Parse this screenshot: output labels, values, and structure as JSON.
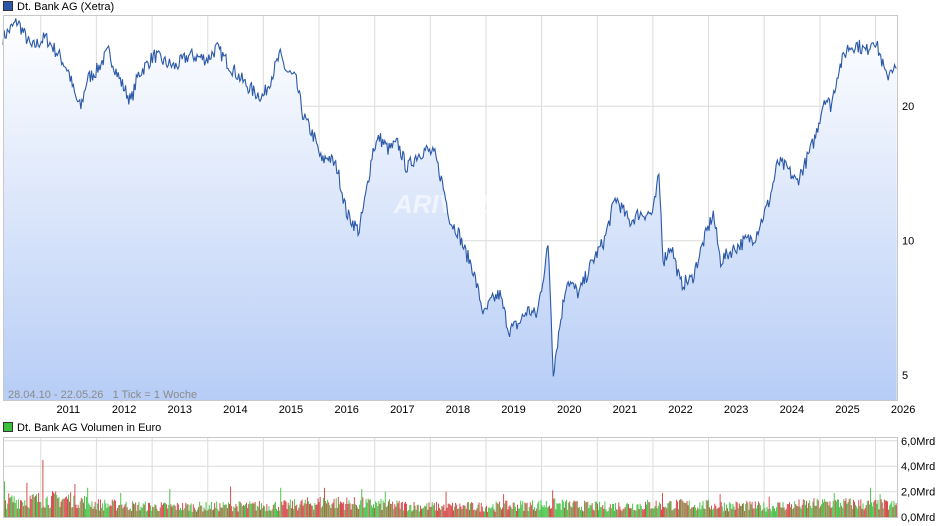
{
  "chart_data": [
    {
      "type": "line",
      "title": "Dt. Bank AG (Xetra)",
      "series": [
        {
          "name": "Dt. Bank AG (Xetra)"
        }
      ],
      "color": "#2b59a8",
      "fill_top": "#ffffff",
      "fill_bottom": "#b7cdf6",
      "y_scale": "log",
      "ylim": [
        4.4,
        32
      ],
      "yticks": [
        5,
        10,
        20
      ],
      "xlim": [
        "2010-04-28",
        "2026-05-22"
      ],
      "xtick_labels": [
        "2011",
        "2012",
        "2013",
        "2014",
        "2015",
        "2016",
        "2017",
        "2018",
        "2019",
        "2020",
        "2021",
        "2022",
        "2023",
        "2024",
        "2025",
        "2026"
      ],
      "annotation": "28.04.10 - 22.05.26   1 Tick = 1 Woche",
      "watermark": "ARIVA.DE",
      "grid": true,
      "points": [
        [
          "2010-04-28",
          28.5
        ],
        [
          "2010-08-01",
          31
        ],
        [
          "2010-11-01",
          27
        ],
        [
          "2011-02-01",
          28.5
        ],
        [
          "2011-05-01",
          26
        ],
        [
          "2011-07-01",
          24
        ],
        [
          "2011-08-15",
          21
        ],
        [
          "2011-09-20",
          19.8
        ],
        [
          "2011-11-01",
          23
        ],
        [
          "2012-01-01",
          24
        ],
        [
          "2012-03-20",
          26.5
        ],
        [
          "2012-06-01",
          23
        ],
        [
          "2012-08-15",
          20.5
        ],
        [
          "2012-10-01",
          23.5
        ],
        [
          "2013-01-15",
          26
        ],
        [
          "2013-04-01",
          25
        ],
        [
          "2013-06-01",
          24.5
        ],
        [
          "2013-09-01",
          26
        ],
        [
          "2014-01-01",
          25.5
        ],
        [
          "2014-03-01",
          27
        ],
        [
          "2014-06-01",
          24.5
        ],
        [
          "2014-09-01",
          22.5
        ],
        [
          "2014-11-01",
          21.5
        ],
        [
          "2015-01-01",
          21
        ],
        [
          "2015-04-20",
          26
        ],
        [
          "2015-06-01",
          24
        ],
        [
          "2015-08-01",
          23
        ],
        [
          "2015-09-20",
          19
        ],
        [
          "2015-12-01",
          17
        ],
        [
          "2016-01-20",
          15
        ],
        [
          "2016-03-01",
          15.5
        ],
        [
          "2016-05-01",
          14.5
        ],
        [
          "2016-07-01",
          11.5
        ],
        [
          "2016-09-20",
          10.5
        ],
        [
          "2016-11-01",
          12.5
        ],
        [
          "2016-12-20",
          16
        ],
        [
          "2017-02-01",
          17
        ],
        [
          "2017-04-01",
          16
        ],
        [
          "2017-06-01",
          16.5
        ],
        [
          "2017-08-01",
          14.5
        ],
        [
          "2017-10-01",
          15.5
        ],
        [
          "2017-12-01",
          16
        ],
        [
          "2018-02-01",
          15.5
        ],
        [
          "2018-03-20",
          13.5
        ],
        [
          "2018-05-15",
          11
        ],
        [
          "2018-07-01",
          10.5
        ],
        [
          "2018-08-15",
          9.5
        ],
        [
          "2018-10-01",
          8.8
        ],
        [
          "2018-12-20",
          6.8
        ],
        [
          "2019-02-01",
          7.3
        ],
        [
          "2019-04-01",
          7.6
        ],
        [
          "2019-06-01",
          6.3
        ],
        [
          "2019-08-01",
          6.5
        ],
        [
          "2019-10-01",
          7
        ],
        [
          "2019-12-01",
          6.8
        ],
        [
          "2020-02-15",
          9.8
        ],
        [
          "2020-03-18",
          5.1
        ],
        [
          "2020-05-01",
          6.5
        ],
        [
          "2020-06-15",
          8.2
        ],
        [
          "2020-09-01",
          7.6
        ],
        [
          "2020-12-01",
          9
        ],
        [
          "2021-02-15",
          10
        ],
        [
          "2021-05-01",
          12.5
        ],
        [
          "2021-08-01",
          11
        ],
        [
          "2021-10-01",
          11.5
        ],
        [
          "2022-01-01",
          11.5
        ],
        [
          "2022-02-10",
          14
        ],
        [
          "2022-03-10",
          9
        ],
        [
          "2022-05-01",
          9.8
        ],
        [
          "2022-07-01",
          8
        ],
        [
          "2022-09-15",
          8.2
        ],
        [
          "2022-12-01",
          10
        ],
        [
          "2023-02-01",
          11.5
        ],
        [
          "2023-03-20",
          9
        ],
        [
          "2023-06-01",
          9.5
        ],
        [
          "2023-09-01",
          10
        ],
        [
          "2023-11-01",
          10.2
        ],
        [
          "2024-02-01",
          12.2
        ],
        [
          "2024-04-01",
          15
        ],
        [
          "2024-06-01",
          14.5
        ],
        [
          "2024-08-01",
          13.5
        ],
        [
          "2024-10-01",
          15
        ],
        [
          "2024-12-01",
          17
        ],
        [
          "2025-02-01",
          21
        ],
        [
          "2025-03-15",
          20
        ],
        [
          "2025-05-01",
          24
        ],
        [
          "2025-07-01",
          27
        ],
        [
          "2025-09-01",
          27.5
        ],
        [
          "2025-11-01",
          26.5
        ],
        [
          "2025-12-20",
          28.5
        ],
        [
          "2026-02-01",
          26
        ],
        [
          "2026-03-15",
          23
        ],
        [
          "2026-04-15",
          24.5
        ],
        [
          "2026-05-22",
          24
        ]
      ]
    },
    {
      "type": "bar",
      "title": "Dt. Bank AG Volumen in Euro",
      "series": [
        {
          "name": "Dt. Bank AG Volumen in Euro"
        }
      ],
      "colors": {
        "up": "#3cbf3c",
        "down": "#d23c3c"
      },
      "ylim": [
        0,
        6.3
      ],
      "yticks": [
        0,
        2,
        4,
        6
      ],
      "ytick_labels": [
        "0,0Mrd",
        "2,0Mrd",
        "4,0Mrd",
        "6,0Mrd"
      ],
      "grid": true,
      "volume_profile_mrd": [
        [
          "2010-04-28",
          1.4
        ],
        [
          "2011-08-01",
          1.6
        ],
        [
          "2012-01-01",
          1.1
        ],
        [
          "2013-01-01",
          0.9
        ],
        [
          "2014-01-01",
          0.9
        ],
        [
          "2015-06-01",
          1.0
        ],
        [
          "2016-02-01",
          1.3
        ],
        [
          "2017-01-01",
          1.1
        ],
        [
          "2018-01-01",
          0.9
        ],
        [
          "2019-01-01",
          0.9
        ],
        [
          "2020-03-15",
          1.1
        ],
        [
          "2021-01-01",
          0.9
        ],
        [
          "2022-03-01",
          1.1
        ],
        [
          "2023-03-15",
          1.0
        ],
        [
          "2024-01-01",
          0.9
        ],
        [
          "2025-04-01",
          1.2
        ],
        [
          "2026-05-22",
          1.0
        ]
      ],
      "volume_spikes_mrd": [
        [
          "2010-05-07",
          2.8
        ],
        [
          "2010-10-01",
          2.7
        ],
        [
          "2011-01-14",
          4.5
        ],
        [
          "2011-08-12",
          2.6
        ],
        [
          "2011-11-04",
          2.3
        ],
        [
          "2012-06-08",
          1.9
        ],
        [
          "2013-04-26",
          2.2
        ],
        [
          "2014-05-30",
          2.4
        ],
        [
          "2015-04-24",
          2.3
        ],
        [
          "2016-02-05",
          2.3
        ],
        [
          "2016-10-07",
          2.2
        ],
        [
          "2017-03-10",
          2.0
        ],
        [
          "2018-04-13",
          2.0
        ],
        [
          "2019-04-26",
          1.8
        ],
        [
          "2020-03-13",
          2.1
        ],
        [
          "2022-03-04",
          1.9
        ],
        [
          "2023-03-17",
          1.8
        ],
        [
          "2024-02-02",
          1.6
        ],
        [
          "2025-04-04",
          1.9
        ],
        [
          "2025-11-28",
          2.3
        ],
        [
          "2026-01-30",
          1.8
        ]
      ]
    }
  ]
}
